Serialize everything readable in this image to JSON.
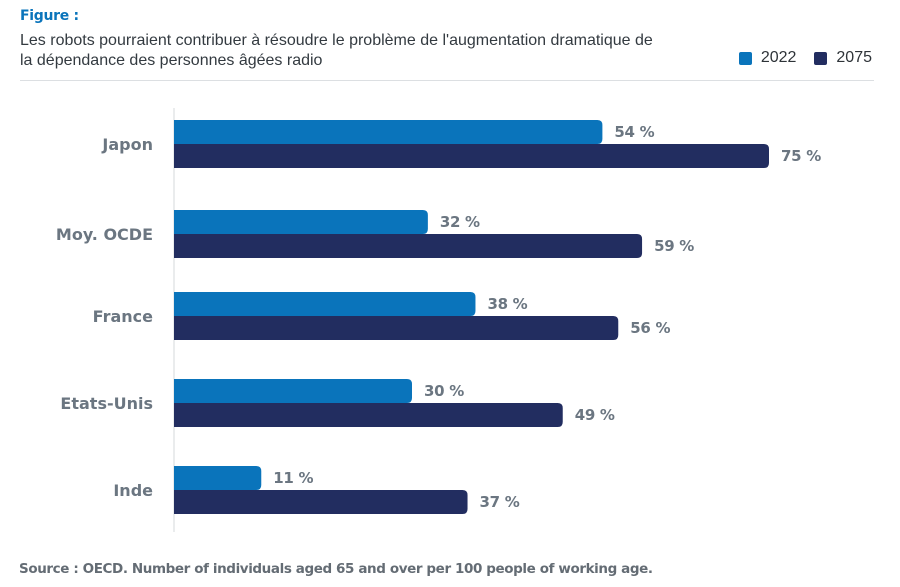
{
  "header": {
    "figure_label": "Figure :",
    "title": "Les robots pourraient contribuer à résoudre le problème de l'augmentation dramatique de la dépendance des personnes âgées radio"
  },
  "colors": {
    "series_2022": "#0a74bb",
    "series_2075": "#222d60",
    "axis": "#d5d8db",
    "label_text": "#6b7681",
    "accent": "#0a74bb"
  },
  "footer": {
    "source": "Source : OECD. Number of individuals aged 65 and over per 100 people of working age."
  },
  "chart_data": {
    "type": "bar",
    "orientation": "horizontal",
    "title": "Les robots pourraient contribuer à résoudre le problème de l'augmentation dramatique de la dépendance des personnes âgées radio",
    "xlabel": "",
    "ylabel": "",
    "categories": [
      "Japon",
      "Moy. OCDE",
      "France",
      "Etats-Unis",
      "Inde"
    ],
    "series": [
      {
        "name": "2022",
        "values": [
          54,
          32,
          38,
          30,
          11
        ],
        "labels": [
          "54 %",
          "32 %",
          "38 %",
          "30 %",
          "11 %"
        ]
      },
      {
        "name": "2075",
        "values": [
          75,
          59,
          56,
          49,
          37
        ],
        "labels": [
          "75 %",
          "59 %",
          "56 %",
          "49 %",
          "37 %"
        ]
      }
    ],
    "xlim": [
      0,
      91
    ],
    "unit": "%",
    "grid": false,
    "legend": {
      "position": "top-right",
      "entries": [
        "2022",
        "2075"
      ]
    },
    "source": "Source : OECD. Number of individuals aged 65 and over per 100 people of working age."
  }
}
